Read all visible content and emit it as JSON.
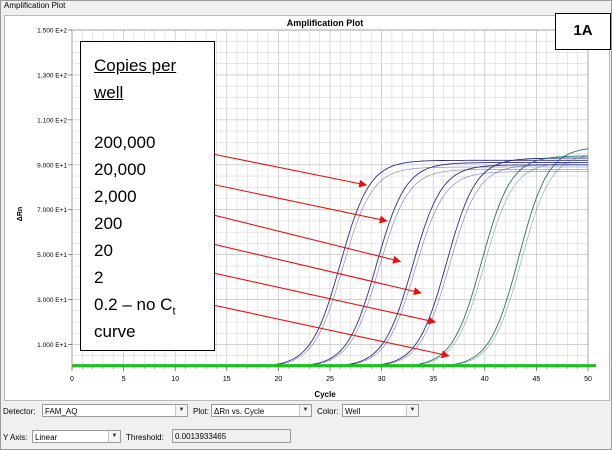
{
  "window": {
    "title": "Amplification Plot"
  },
  "panel_badge": "1A",
  "legend": {
    "heading_line1": "Copies per",
    "heading_line2": "well",
    "items": [
      "200,000",
      "20,000",
      "2,000",
      "200",
      "20",
      "2"
    ],
    "last_line1": "0.2 – no C",
    "last_sub": "t",
    "last_line2": "curve"
  },
  "controls": {
    "detector_label": "Detector:",
    "detector_value": "FAM_AQ",
    "plot_label": "Plot:",
    "plot_value": "ΔRn vs. Cycle",
    "color_label": "Color:",
    "color_value": "Well",
    "yaxis_label": "Y Axis:",
    "yaxis_value": "Linear",
    "threshold_label": "Threshold:",
    "threshold_value": "0.0013933465"
  },
  "colors": {
    "threshold": "#1fbf1f",
    "arrow": "#e81010",
    "curve": "#2a2d8c",
    "curve_alt": "#2f6f7a"
  },
  "chart_data": {
    "type": "line",
    "title": "Amplification Plot",
    "xlabel": "Cycle",
    "ylabel": "ΔRn",
    "xlim": [
      0,
      50
    ],
    "ylim": [
      0,
      150
    ],
    "xticks": [
      0,
      5,
      10,
      15,
      20,
      25,
      30,
      35,
      40,
      45,
      50
    ],
    "yticks": [
      10,
      30,
      50,
      70,
      90,
      110,
      130,
      150
    ],
    "ytick_labels": [
      "1.000 E+1",
      "3.000 E+1",
      "5.000 E+1",
      "7.000 E+1",
      "9.000 E+1",
      "1.100 E+2",
      "1.300 E+2",
      "1.500 E+2"
    ],
    "grid": true,
    "threshold": 0.0013933465,
    "series": [
      {
        "midpoint_cycle": 26.0,
        "plateau": 92,
        "slope": 1.35
      },
      {
        "midpoint_cycle": 29.5,
        "plateau": 91,
        "slope": 1.35
      },
      {
        "midpoint_cycle": 33.0,
        "plateau": 90,
        "slope": 1.35
      },
      {
        "midpoint_cycle": 36.3,
        "plateau": 93,
        "slope": 1.35
      },
      {
        "midpoint_cycle": 39.7,
        "plateau": 94,
        "slope": 1.35
      },
      {
        "midpoint_cycle": 43.3,
        "plateau": 98,
        "slope": 1.35
      }
    ],
    "arrow_targets": [
      {
        "label": "200,000",
        "x": 28.5,
        "y": 81
      },
      {
        "label": "20,000",
        "x": 30.5,
        "y": 65
      },
      {
        "label": "2,000",
        "x": 31.8,
        "y": 47
      },
      {
        "label": "200",
        "x": 33.8,
        "y": 33
      },
      {
        "label": "20",
        "x": 35.2,
        "y": 20
      },
      {
        "label": "2",
        "x": 36.5,
        "y": 5
      }
    ]
  }
}
